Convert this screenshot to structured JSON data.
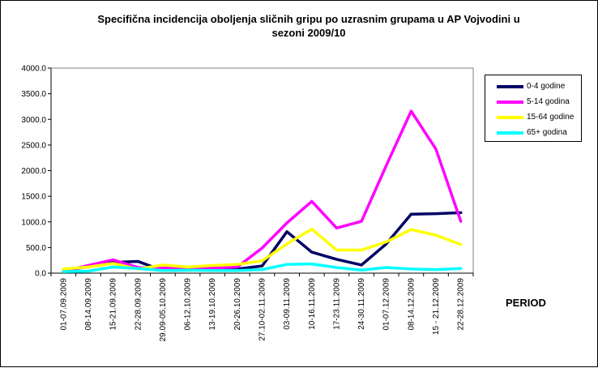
{
  "chart_data": {
    "type": "line",
    "title": "Specifična incidencija oboljenja sličnih gripu po uzrasnim grupama u AP Vojvodini  u sezoni 2009/10",
    "title_lines": [
      "Specifična incidencija oboljenja sličnih gripu po uzrasnim grupama u AP Vojvodini  u",
      "sezoni 2009/10"
    ],
    "xlabel": "PERIOD",
    "ylabel": "",
    "ylim": [
      0,
      4000
    ],
    "yticks": [
      0,
      500,
      1000,
      1500,
      2000,
      2500,
      3000,
      3500,
      4000
    ],
    "ytick_labels": [
      "0.0",
      "500.0",
      "1000.0",
      "1500.0",
      "2000.0",
      "2500.0",
      "3000.0",
      "3500.0",
      "4000.0"
    ],
    "grid": false,
    "legend_position": "right",
    "categories": [
      "01-07.09.2009",
      "08-14.09.2009",
      "15-21.09.2009",
      "22-28.09.2009",
      "29.09-05.10.2009",
      "06-12.10.2009",
      "13-19.10.2009",
      "20-26.10.2009",
      "27.10-02.11.2009",
      "03-09.11.2009",
      "10-16.11.2009",
      "17-23.11.2009",
      "24-30.11.2009",
      "01-07.12.2009",
      "08-14.12.2009",
      "15 - 21.12.2009",
      "22-28.12.2009"
    ],
    "series": [
      {
        "name": "0-4 godine",
        "color": "#000066",
        "values": [
          50,
          130,
          210,
          230,
          50,
          60,
          70,
          80,
          140,
          810,
          410,
          270,
          160,
          570,
          1150,
          1160,
          1180
        ]
      },
      {
        "name": "5-14 godina",
        "color": "#ff00ff",
        "values": [
          40,
          150,
          260,
          110,
          100,
          100,
          100,
          120,
          490,
          980,
          1400,
          880,
          1010,
          2100,
          3160,
          2420,
          1010
        ]
      },
      {
        "name": "15-64 godine",
        "color": "#ffff00",
        "values": [
          80,
          120,
          190,
          80,
          160,
          120,
          150,
          170,
          240,
          570,
          860,
          450,
          450,
          610,
          850,
          740,
          560
        ]
      },
      {
        "name": "65+ godina",
        "color": "#00ffff",
        "values": [
          30,
          40,
          120,
          90,
          50,
          60,
          50,
          50,
          70,
          170,
          180,
          110,
          60,
          110,
          80,
          70,
          90
        ]
      }
    ]
  }
}
